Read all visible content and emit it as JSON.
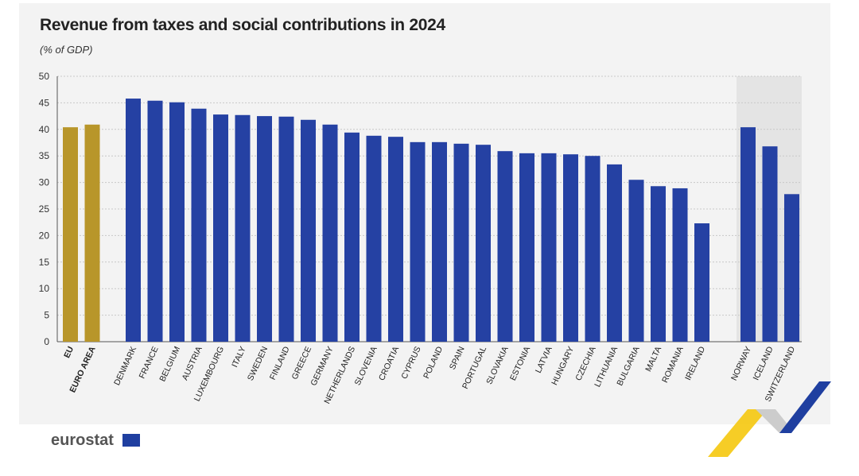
{
  "chart_data": {
    "type": "bar",
    "title": "Revenue from taxes and social contributions in 2024",
    "subtitle": "(% of GDP)",
    "ylim": [
      0,
      50
    ],
    "yticks": [
      0,
      5,
      10,
      15,
      20,
      25,
      30,
      35,
      40,
      45,
      50
    ],
    "grid": true,
    "groups": [
      {
        "categories": [
          "EU",
          "EURO AREA"
        ],
        "values": [
          40.4,
          40.9
        ],
        "color": "#b8962a"
      },
      {
        "categories": [
          "DENMARK",
          "FRANCE",
          "BELGIUM",
          "AUSTRIA",
          "LUXEMBOURG",
          "ITALY",
          "SWEDEN",
          "FINLAND",
          "GREECE",
          "GERMANY",
          "NETHERLANDS",
          "SLOVENIA",
          "CROATIA",
          "CYPRUS",
          "POLAND",
          "SPAIN",
          "PORTUGAL",
          "SLOVAKIA",
          "ESTONIA",
          "LATVIA",
          "HUNGARY",
          "CZECHIA",
          "LITHUANIA",
          "BULGARIA",
          "MALTA",
          "ROMANIA",
          "IRELAND"
        ],
        "values": [
          45.8,
          45.4,
          45.1,
          43.9,
          42.8,
          42.7,
          42.5,
          42.4,
          41.8,
          40.9,
          39.4,
          38.8,
          38.6,
          37.6,
          37.6,
          37.3,
          37.1,
          35.9,
          35.5,
          35.5,
          35.3,
          35.0,
          33.4,
          30.5,
          29.3,
          28.9,
          22.3
        ],
        "color": "#2541a3"
      },
      {
        "categories": [
          "NORWAY",
          "ICELAND",
          "SWITZERLAND"
        ],
        "values": [
          40.4,
          36.8,
          27.8
        ],
        "color": "#2541a3",
        "shaded": true
      }
    ]
  },
  "branding": {
    "logo_text": "eurostat"
  }
}
